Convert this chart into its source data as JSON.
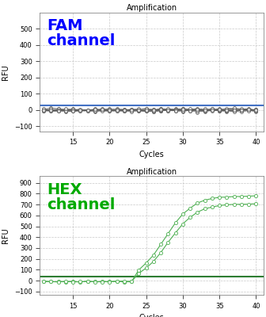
{
  "title": "Amplification",
  "xlabel": "Cycles",
  "ylabel": "RFU",
  "fam_label_line1": "FAM",
  "fam_label_line2": "channel",
  "hex_label_line1": "HEX",
  "hex_label_line2": "channel",
  "fam_label_color": "#0000FF",
  "hex_label_color": "#00AA00",
  "fam_ylim": [
    -130,
    600
  ],
  "fam_yticks": [
    -100,
    0,
    100,
    200,
    300,
    400,
    500
  ],
  "hex_ylim": [
    -130,
    960
  ],
  "hex_yticks": [
    -100,
    0,
    100,
    200,
    300,
    400,
    500,
    600,
    700,
    800,
    900
  ],
  "xlim": [
    10.5,
    41
  ],
  "xticks": [
    15,
    20,
    25,
    30,
    35,
    40
  ],
  "fam_threshold": 30,
  "hex_threshold": 40,
  "fam_threshold_color": "#4472C4",
  "hex_threshold_color": "#2E7D32",
  "fam_line_color": "#555555",
  "hex_line_color": "#4CAF50",
  "fam_marker_facecolor": "#DDDDDD",
  "fam_marker_edgecolor": "#555555",
  "hex_marker_facecolor": "#FFFFFF",
  "hex_marker_edgecolor": "#4CAF50",
  "background_color": "#FFFFFF",
  "grid_color": "#BBBBBB",
  "title_fontsize": 7,
  "label_fontsize": 7,
  "tick_fontsize": 6,
  "annotation_fontsize": 14
}
